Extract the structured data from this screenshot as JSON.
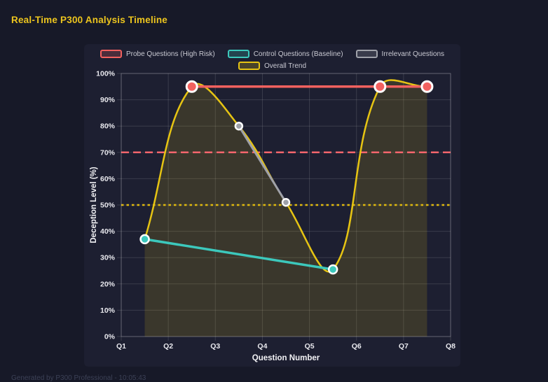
{
  "page": {
    "title": "Real-Time P300 Analysis Timeline",
    "footer": "Generated by P300 Professional - 10:05:43"
  },
  "colors": {
    "page_bg": "#171928",
    "panel_bg": "#1d1f31",
    "title_gold": "#edc51e",
    "grid": "rgba(255,255,255,0.13)",
    "plot_border": "rgba(255,255,255,0.22)",
    "point_border": "#ffffff"
  },
  "chart_data": {
    "type": "line",
    "title": "Real-Time P300 Analysis Timeline",
    "xlabel": "Question Number",
    "ylabel": "Deception Level (%)",
    "x_ticks": [
      "Q1",
      "Q2",
      "Q3",
      "Q4",
      "Q5",
      "Q6",
      "Q7",
      "Q8"
    ],
    "x_range": [
      1,
      8
    ],
    "ylim": [
      0,
      100
    ],
    "y_tick_step": 10,
    "y_tick_suffix": "%",
    "grid": true,
    "legend_position": "top",
    "series": [
      {
        "name": "Probe Questions (High Risk)",
        "color": "#f2615f",
        "x": [
          2.5,
          6.5,
          7.5
        ],
        "y": [
          95,
          95,
          95
        ],
        "line_width": 3.5,
        "point_radius": 7.5,
        "point_border_width": 3,
        "smooth": false
      },
      {
        "name": "Control Questions (Baseline)",
        "color": "#3cc8bc",
        "x": [
          1.5,
          5.5
        ],
        "y": [
          37,
          25.5
        ],
        "line_width": 3.5,
        "point_radius": 6,
        "point_border_width": 2.5,
        "smooth": false
      },
      {
        "name": "Irrelevant Questions",
        "color": "#9fa1a9",
        "x": [
          3.5,
          4.5
        ],
        "y": [
          80,
          51
        ],
        "line_width": 3,
        "point_radius": 5,
        "point_border_width": 2.5,
        "smooth": false
      },
      {
        "name": "Overall Trend",
        "color": "#e6c413",
        "x": [
          1.5,
          2.5,
          3.5,
          4.5,
          5.5,
          6.5,
          7.5
        ],
        "y": [
          37,
          95,
          80,
          51,
          25.5,
          95,
          95
        ],
        "line_width": 2.5,
        "point_radius": 0,
        "point_border_width": 0,
        "smooth": true,
        "fill": true,
        "fill_opacity": 0.15
      }
    ],
    "thresholds": [
      {
        "value": 70,
        "color": "#f4656c",
        "style": "dashed"
      },
      {
        "value": 50,
        "color": "#e0b90e",
        "style": "dotted"
      }
    ]
  }
}
